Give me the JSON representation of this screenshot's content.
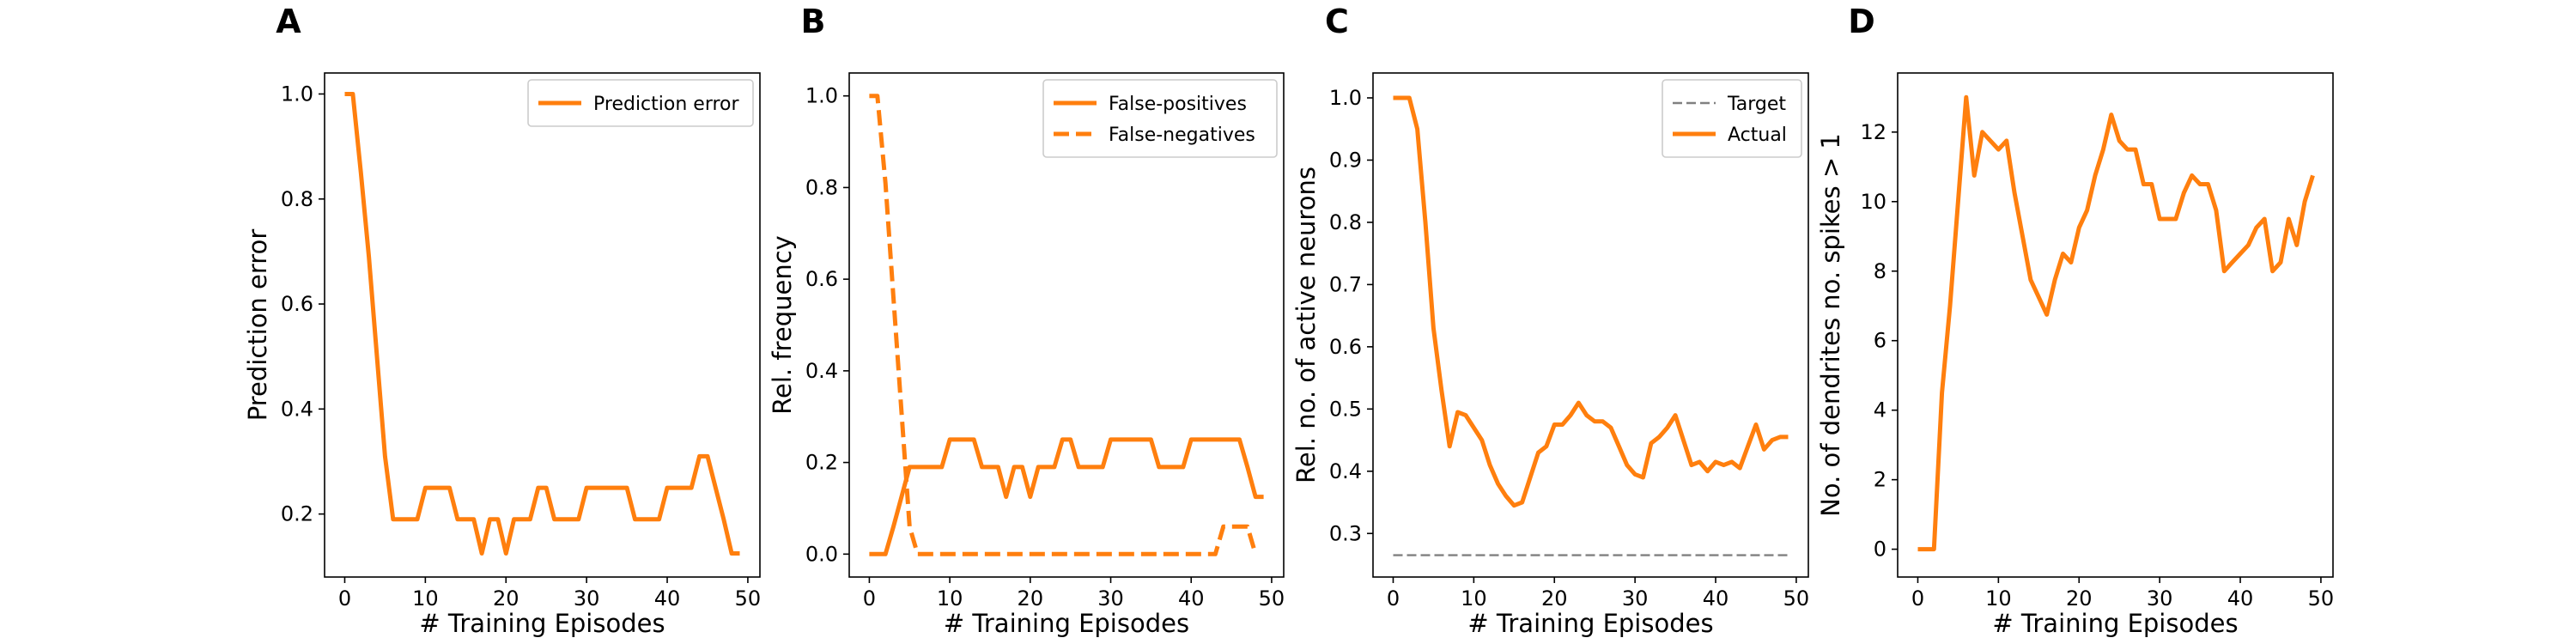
{
  "colors": {
    "orange": "#ff7f0e",
    "target_gray": "#808080",
    "axes": "#000000"
  },
  "chart_data": [
    {
      "panel": "A",
      "type": "line",
      "xlabel": "# Training Episodes",
      "ylabel": "Prediction error",
      "xlim": [
        -2.5,
        51.5
      ],
      "ylim": [
        0.08,
        1.04
      ],
      "xticks": [
        0,
        10,
        20,
        30,
        40,
        50
      ],
      "yticks": [
        0.2,
        0.4,
        0.6,
        0.8,
        1.0
      ],
      "ytick_labels": [
        "0.2",
        "0.4",
        "0.6",
        "0.8",
        "1.0"
      ],
      "legend": {
        "position": "top-right",
        "entries": [
          "Prediction error"
        ]
      },
      "series": [
        {
          "name": "Prediction error",
          "style": "solid",
          "x": [
            0,
            1,
            2,
            3,
            4,
            5,
            6,
            7,
            8,
            9,
            10,
            11,
            12,
            13,
            14,
            15,
            16,
            17,
            18,
            19,
            20,
            21,
            22,
            23,
            24,
            25,
            26,
            27,
            28,
            29,
            30,
            31,
            32,
            33,
            34,
            35,
            36,
            37,
            38,
            39,
            40,
            41,
            42,
            43,
            44,
            45,
            46,
            47,
            48,
            49
          ],
          "y": [
            1.0,
            1.0,
            0.85,
            0.69,
            0.5,
            0.31,
            0.19,
            0.19,
            0.19,
            0.19,
            0.25,
            0.25,
            0.25,
            0.25,
            0.19,
            0.19,
            0.19,
            0.125,
            0.19,
            0.19,
            0.125,
            0.19,
            0.19,
            0.19,
            0.25,
            0.25,
            0.19,
            0.19,
            0.19,
            0.19,
            0.25,
            0.25,
            0.25,
            0.25,
            0.25,
            0.25,
            0.19,
            0.19,
            0.19,
            0.19,
            0.25,
            0.25,
            0.25,
            0.25,
            0.31,
            0.31,
            0.25,
            0.19,
            0.125,
            0.125
          ]
        }
      ]
    },
    {
      "panel": "B",
      "type": "line",
      "xlabel": "# Training Episodes",
      "ylabel": "Rel. frequency",
      "xlim": [
        -2.5,
        51.5
      ],
      "ylim": [
        -0.05,
        1.05
      ],
      "xticks": [
        0,
        10,
        20,
        30,
        40,
        50
      ],
      "yticks": [
        0.0,
        0.2,
        0.4,
        0.6,
        0.8,
        1.0
      ],
      "ytick_labels": [
        "0.0",
        "0.2",
        "0.4",
        "0.6",
        "0.8",
        "1.0"
      ],
      "legend": {
        "position": "top-right",
        "entries": [
          "False-positives",
          "False-negatives"
        ]
      },
      "series": [
        {
          "name": "False-positives",
          "style": "solid",
          "x": [
            0,
            1,
            2,
            3,
            4,
            5,
            6,
            7,
            8,
            9,
            10,
            11,
            12,
            13,
            14,
            15,
            16,
            17,
            18,
            19,
            20,
            21,
            22,
            23,
            24,
            25,
            26,
            27,
            28,
            29,
            30,
            31,
            32,
            33,
            34,
            35,
            36,
            37,
            38,
            39,
            40,
            41,
            42,
            43,
            44,
            45,
            46,
            47,
            48,
            49
          ],
          "y": [
            0,
            0,
            0,
            0.06,
            0.125,
            0.19,
            0.19,
            0.19,
            0.19,
            0.19,
            0.25,
            0.25,
            0.25,
            0.25,
            0.19,
            0.19,
            0.19,
            0.125,
            0.19,
            0.19,
            0.125,
            0.19,
            0.19,
            0.19,
            0.25,
            0.25,
            0.19,
            0.19,
            0.19,
            0.19,
            0.25,
            0.25,
            0.25,
            0.25,
            0.25,
            0.25,
            0.19,
            0.19,
            0.19,
            0.19,
            0.25,
            0.25,
            0.25,
            0.25,
            0.25,
            0.25,
            0.25,
            0.19,
            0.125,
            0.125
          ]
        },
        {
          "name": "False-negatives",
          "style": "dashed",
          "x": [
            0,
            1,
            2,
            3,
            4,
            5,
            6,
            7,
            8,
            9,
            10,
            11,
            12,
            13,
            14,
            15,
            16,
            17,
            18,
            19,
            20,
            21,
            22,
            23,
            24,
            25,
            26,
            27,
            28,
            29,
            30,
            31,
            32,
            33,
            34,
            35,
            36,
            37,
            38,
            39,
            40,
            41,
            42,
            43,
            44,
            45,
            46,
            47,
            48
          ],
          "y": [
            1.0,
            1.0,
            0.81,
            0.56,
            0.31,
            0.06,
            0,
            0,
            0,
            0,
            0,
            0,
            0,
            0,
            0,
            0,
            0,
            0,
            0,
            0,
            0,
            0,
            0,
            0,
            0,
            0,
            0,
            0,
            0,
            0,
            0,
            0,
            0,
            0,
            0,
            0,
            0,
            0,
            0,
            0,
            0,
            0,
            0,
            0,
            0.06,
            0.06,
            0.06,
            0.06,
            0
          ]
        }
      ]
    },
    {
      "panel": "C",
      "type": "line",
      "xlabel": "# Training Episodes",
      "ylabel": "Rel. no. of active neurons",
      "xlim": [
        -2.5,
        51.5
      ],
      "ylim": [
        0.23,
        1.04
      ],
      "xticks": [
        0,
        10,
        20,
        30,
        40,
        50
      ],
      "yticks": [
        0.3,
        0.4,
        0.5,
        0.6,
        0.7,
        0.8,
        0.9,
        1.0
      ],
      "ytick_labels": [
        "0.3",
        "0.4",
        "0.5",
        "0.6",
        "0.7",
        "0.8",
        "0.9",
        "1.0"
      ],
      "legend": {
        "position": "top-right",
        "entries": [
          "Target",
          "Actual"
        ]
      },
      "series": [
        {
          "name": "Target",
          "style": "dashed-thin",
          "x": [
            0,
            49
          ],
          "y": [
            0.265,
            0.265
          ]
        },
        {
          "name": "Actual",
          "style": "solid",
          "x": [
            0,
            1,
            2,
            3,
            4,
            5,
            6,
            7,
            8,
            9,
            10,
            11,
            12,
            13,
            14,
            15,
            16,
            17,
            18,
            19,
            20,
            21,
            22,
            23,
            24,
            25,
            26,
            27,
            28,
            29,
            30,
            31,
            32,
            33,
            34,
            35,
            36,
            37,
            38,
            39,
            40,
            41,
            42,
            43,
            44,
            45,
            46,
            47,
            48,
            49
          ],
          "y": [
            1.0,
            1.0,
            1.0,
            0.95,
            0.8,
            0.63,
            0.53,
            0.44,
            0.495,
            0.49,
            0.47,
            0.45,
            0.41,
            0.38,
            0.36,
            0.345,
            0.35,
            0.39,
            0.43,
            0.44,
            0.475,
            0.475,
            0.49,
            0.51,
            0.49,
            0.48,
            0.48,
            0.47,
            0.44,
            0.41,
            0.395,
            0.39,
            0.445,
            0.455,
            0.47,
            0.49,
            0.45,
            0.41,
            0.415,
            0.4,
            0.415,
            0.41,
            0.415,
            0.405,
            0.44,
            0.475,
            0.435,
            0.45,
            0.455,
            0.455
          ]
        }
      ]
    },
    {
      "panel": "D",
      "type": "line",
      "xlabel": "# Training Episodes",
      "ylabel": "No. of dendrites no. spikes > 1",
      "xlim": [
        -2.5,
        51.5
      ],
      "ylim": [
        -0.8,
        13.7
      ],
      "xticks": [
        0,
        10,
        20,
        30,
        40,
        50
      ],
      "yticks": [
        0,
        2,
        4,
        6,
        8,
        10,
        12
      ],
      "ytick_labels": [
        "0",
        "2",
        "4",
        "6",
        "8",
        "10",
        "12"
      ],
      "series": [
        {
          "name": "",
          "style": "solid",
          "x": [
            0,
            1,
            2,
            3,
            4,
            5,
            6,
            7,
            8,
            9,
            10,
            11,
            12,
            13,
            14,
            15,
            16,
            17,
            18,
            19,
            20,
            21,
            22,
            23,
            24,
            25,
            26,
            27,
            28,
            29,
            30,
            31,
            32,
            33,
            34,
            35,
            36,
            37,
            38,
            39,
            40,
            41,
            42,
            43,
            44,
            45,
            46,
            47,
            48,
            49
          ],
          "y": [
            0,
            0,
            0,
            4.5,
            7,
            10,
            13,
            10.75,
            12,
            11.75,
            11.5,
            11.75,
            10.25,
            9,
            7.75,
            7.25,
            6.75,
            7.75,
            8.5,
            8.25,
            9.25,
            9.75,
            10.75,
            11.5,
            12.5,
            11.75,
            11.5,
            11.5,
            10.5,
            10.5,
            9.5,
            9.5,
            9.5,
            10.25,
            10.75,
            10.5,
            10.5,
            9.75,
            8,
            8.25,
            8.5,
            8.75,
            9.25,
            9.5,
            8,
            8.25,
            9.5,
            8.75,
            10,
            10.75
          ]
        }
      ]
    }
  ]
}
